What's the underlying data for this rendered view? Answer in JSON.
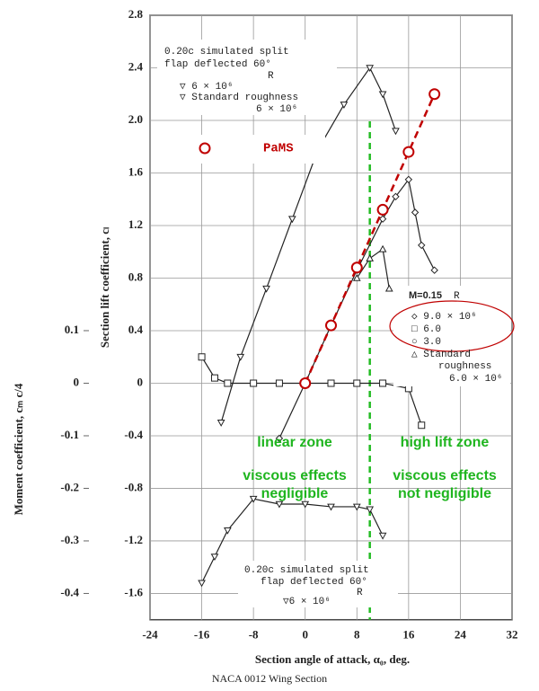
{
  "chart_data": {
    "type": "line",
    "xlabel": "Section angle of attack, α₀, deg.",
    "ylabel": "Section lift coefficient, cₗ",
    "y2label": "Moment coefficient, cₘ c/4",
    "footer": "NACA 0012 Wing Section",
    "xlim": [
      -24,
      32
    ],
    "ylim": [
      -1.8,
      2.8
    ],
    "y2lim": [
      -0.45,
      0.7
    ],
    "xticks": [
      -24,
      -16,
      -8,
      0,
      8,
      16,
      24,
      32
    ],
    "yticks": [
      -1.6,
      -1.2,
      -0.8,
      -0.4,
      0,
      0.4,
      0.8,
      1.2,
      1.6,
      {
        "value": 2,
        "label": "2.0"
      },
      2.4,
      2.8
    ],
    "y2ticks": [
      0.1,
      0,
      -0.1,
      -0.2,
      -0.3,
      -0.4
    ],
    "grid": true,
    "vline": {
      "value": 10,
      "color": "#22bb22"
    },
    "series": [
      {
        "color": "#222222",
        "marker": "triangle-down",
        "x": [
          -13,
          -10,
          -6,
          -2,
          2,
          6,
          10,
          12,
          14
        ],
        "values": [
          -0.3,
          0.2,
          0.72,
          1.25,
          1.78,
          2.12,
          2.4,
          2.2,
          1.92
        ]
      },
      {
        "color": "#222222",
        "marker": "diamond",
        "x": [
          -4,
          0,
          4,
          8,
          12,
          14,
          16,
          17,
          18,
          20
        ],
        "values": [
          -0.42,
          0,
          0.44,
          0.86,
          1.25,
          1.42,
          1.55,
          1.3,
          1.05,
          0.86
        ]
      },
      {
        "color": "#222222",
        "marker": "triangle",
        "x": [
          8,
          10,
          12,
          13
        ],
        "values": [
          0.8,
          0.95,
          1.02,
          0.72
        ]
      },
      {
        "color": "#222222",
        "marker": "square",
        "axis": "y2",
        "x": [
          -16,
          -14,
          -12,
          -8,
          -4,
          0,
          4,
          8,
          12,
          16,
          18
        ],
        "values": [
          0.05,
          0.01,
          0,
          0,
          0,
          0,
          0,
          0,
          0,
          -0.01,
          -0.08
        ]
      },
      {
        "color": "#222222",
        "marker": "triangle-down",
        "axis": "y2",
        "x": [
          -16,
          -14,
          -12,
          -8,
          -4,
          0,
          4,
          8,
          10,
          12
        ],
        "values": [
          -0.38,
          -0.33,
          -0.28,
          -0.22,
          -0.23,
          -0.23,
          -0.235,
          -0.235,
          -0.24,
          -0.29
        ]
      },
      {
        "name": "PaMS",
        "color": "#c00000",
        "marker": "circle",
        "dashed": true,
        "x": [
          0,
          4,
          8,
          12,
          16,
          20
        ],
        "values": [
          0,
          0.44,
          0.88,
          1.32,
          1.76,
          2.2
        ]
      }
    ],
    "legend_boxes": [
      {
        "lines": [
          "0.20c simulated split",
          "flap deflected 60°",
          "R",
          "▽ 6 × 10⁶",
          "▽ Standard roughness",
          "6 × 10⁶"
        ]
      },
      {
        "lines": [
          "M=0.15",
          "R",
          "◇  9.0 × 10⁶",
          "□  6.0",
          "○  3.0",
          "△  Standard",
          "roughness",
          "6.0 × 10⁶"
        ]
      },
      {
        "lines": [
          "0.20c simulated split",
          "flap deflected 60°",
          "R",
          "▽6 × 10⁶"
        ]
      }
    ],
    "zone_labels": [
      "linear zone",
      "high lift zone",
      "viscous effects",
      "negligible",
      "viscous effects",
      "not negligible"
    ]
  }
}
